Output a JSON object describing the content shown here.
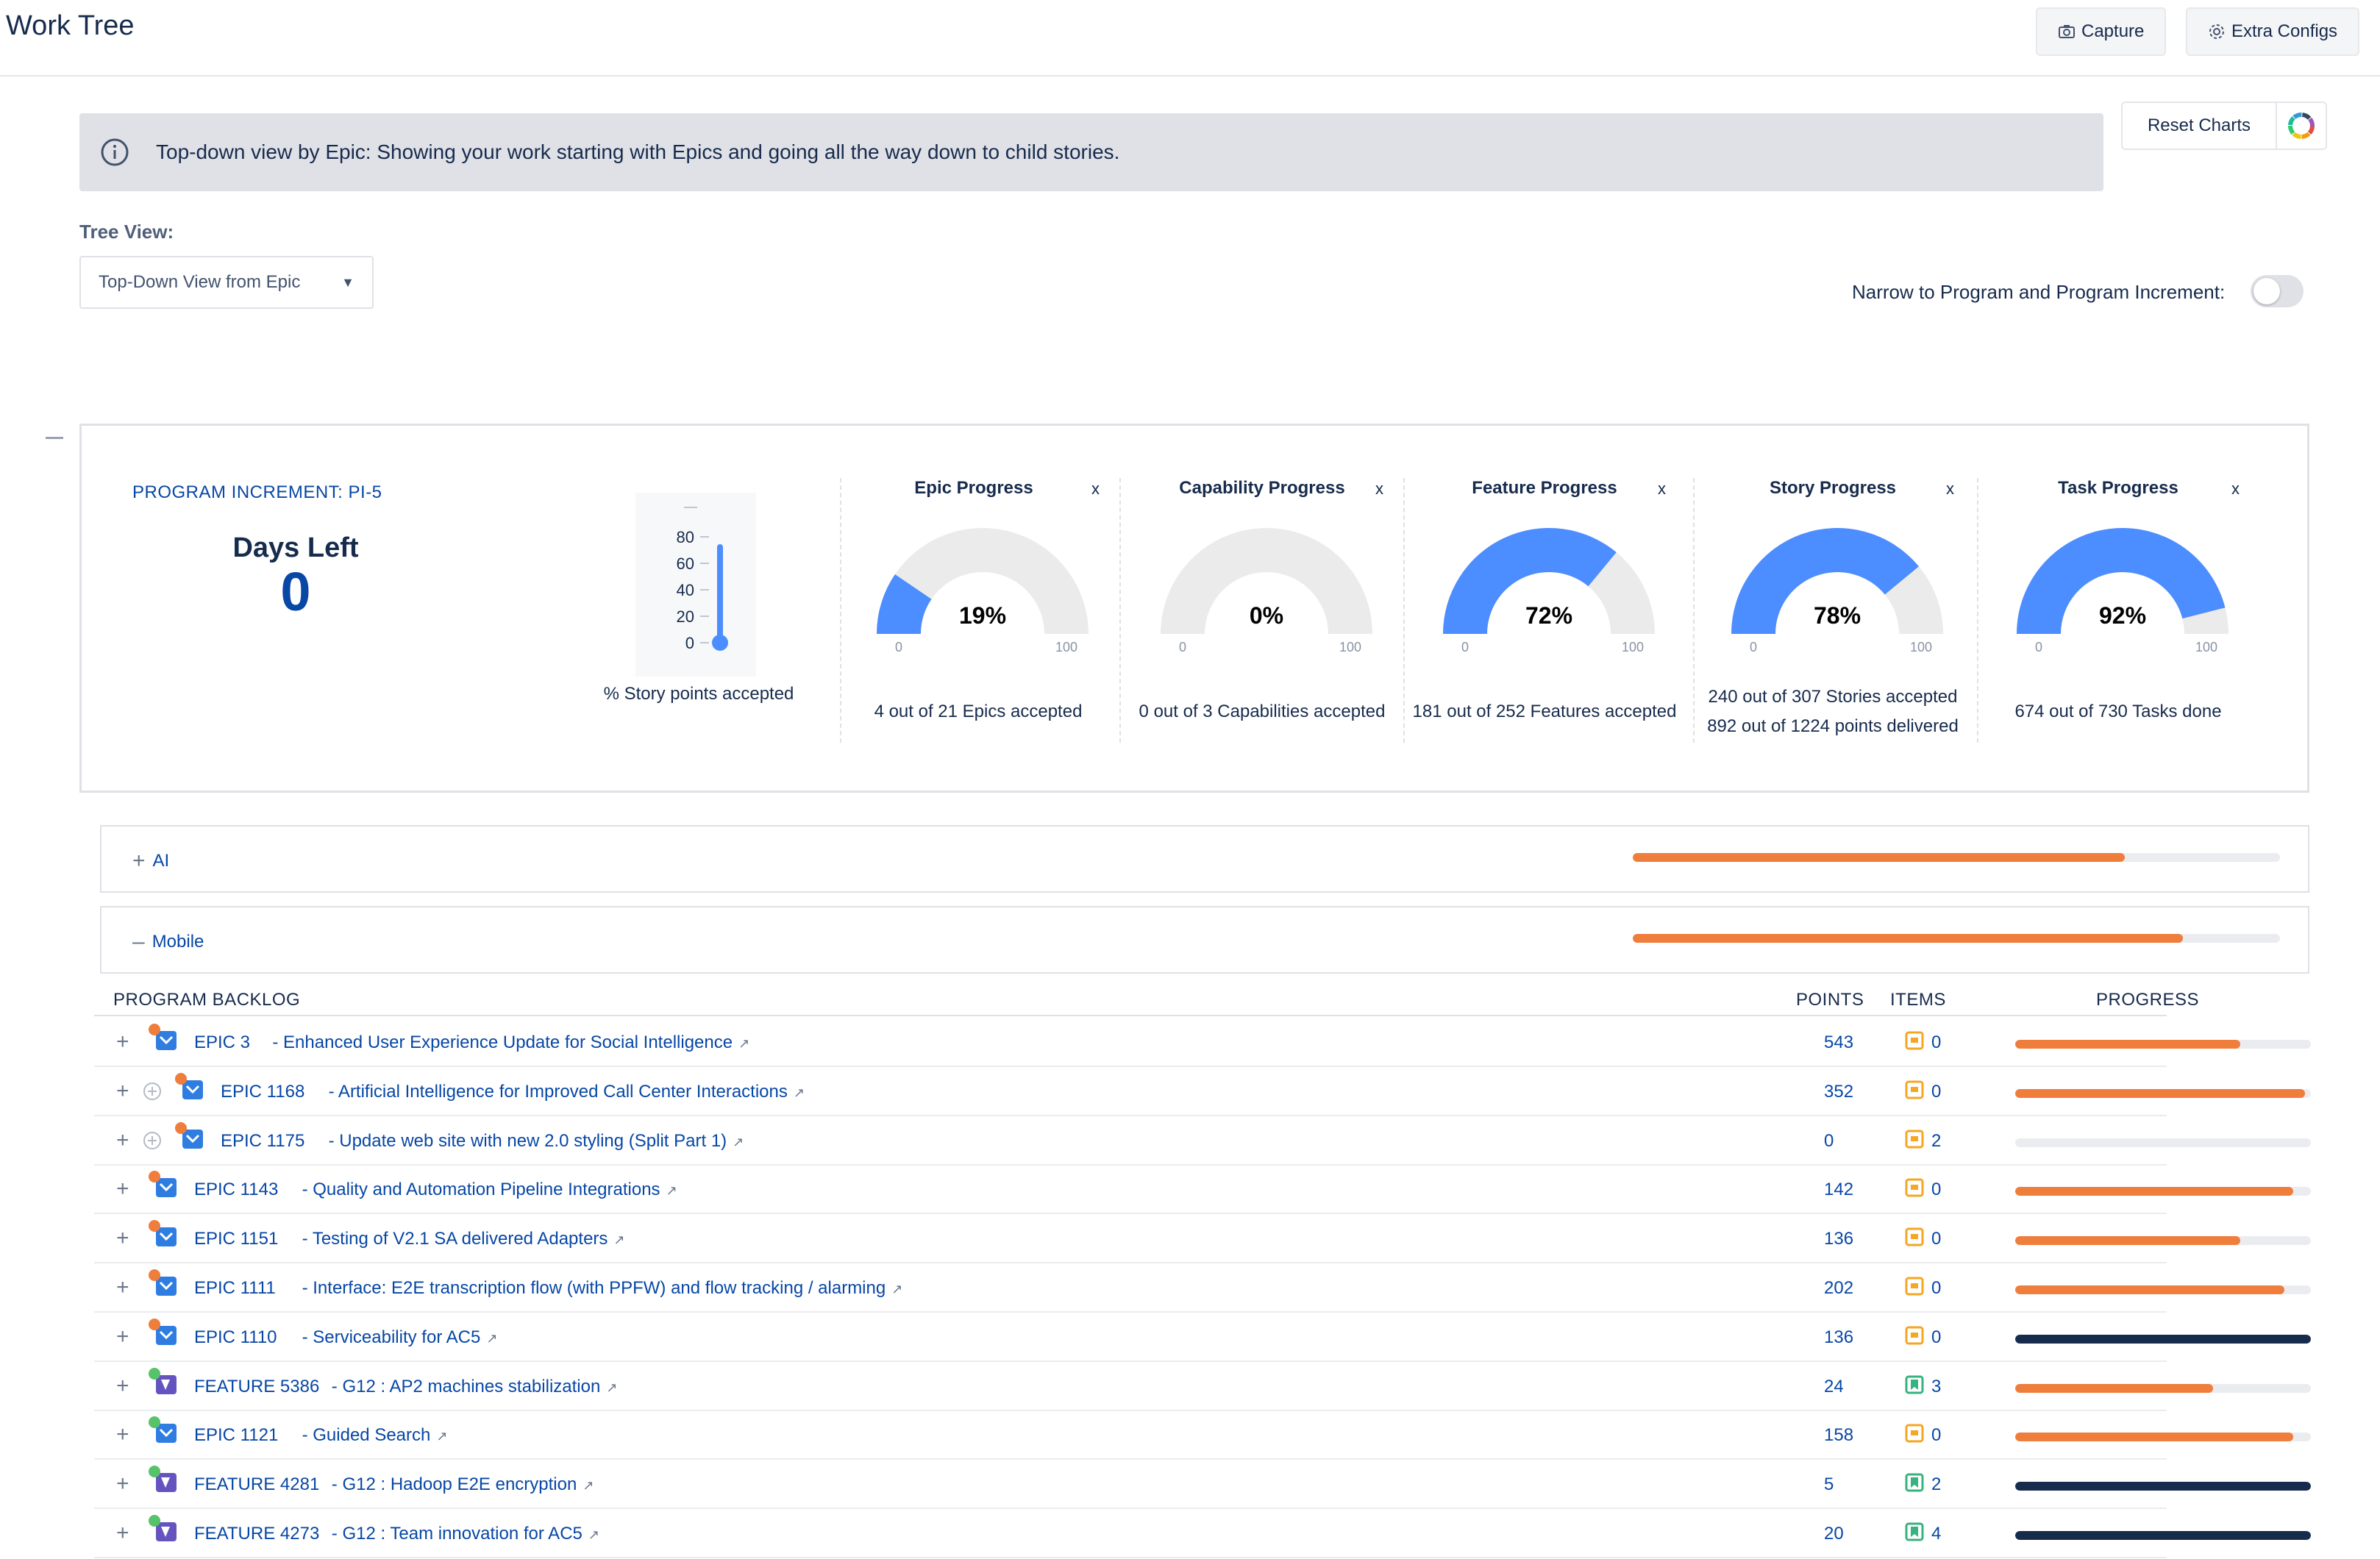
{
  "header": {
    "title": "Work Tree",
    "capture_label": "Capture",
    "extra_configs_label": "Extra Configs"
  },
  "banner": {
    "text": "Top-down view by Epic: Showing your work starting with Epics and going all the way down to child stories."
  },
  "reset_charts_label": "Reset Charts",
  "tree_view": {
    "label": "Tree View:",
    "selected": "Top-Down View from Epic"
  },
  "narrow": {
    "label": "Narrow to Program and Program Increment:",
    "enabled": false
  },
  "pi": {
    "label": "PROGRAM INCREMENT: PI-5",
    "days_left_label": "Days Left",
    "days_left_value": "0"
  },
  "thermometer": {
    "ticks": [
      "80",
      "60",
      "40",
      "20",
      "0"
    ],
    "caption": "% Story points accepted"
  },
  "gauges": [
    {
      "title": "Epic Progress",
      "percent": 19,
      "label": "19%",
      "min": "0",
      "max": "100",
      "caption1": "4 out of 21 Epics accepted",
      "caption2": ""
    },
    {
      "title": "Capability Progress",
      "percent": 0,
      "label": "0%",
      "min": "0",
      "max": "100",
      "caption1": "0 out of 3 Capabilities accepted",
      "caption2": ""
    },
    {
      "title": "Feature Progress",
      "percent": 72,
      "label": "72%",
      "min": "0",
      "max": "100",
      "caption1": "181 out of 252 Features accepted",
      "caption2": ""
    },
    {
      "title": "Story Progress",
      "percent": 78,
      "label": "78%",
      "min": "0",
      "max": "100",
      "caption1": "240 out of 307 Stories accepted",
      "caption2": "892 out of 1224 points delivered"
    },
    {
      "title": "Task Progress",
      "percent": 92,
      "label": "92%",
      "min": "0",
      "max": "100",
      "caption1": "674 out of 730 Tasks done",
      "caption2": ""
    }
  ],
  "gauge_close": "x",
  "groups": [
    {
      "name": "AI",
      "expanded": false,
      "progress": 0.76
    },
    {
      "name": "Mobile",
      "expanded": true,
      "progress": 0.85
    }
  ],
  "table": {
    "col_backlog": "PROGRAM BACKLOG",
    "col_points": "POINTS",
    "col_items": "ITEMS",
    "col_progress": "PROGRESS",
    "rows": [
      {
        "key": "EPIC 3",
        "summary": "- Enhanced User Experience Update for Social Intelligence",
        "type": "epic",
        "dot": "#ef7d3c",
        "indent": false,
        "points": "543",
        "items": "0",
        "progress": 0.76,
        "bar_color": "#ef7d3c"
      },
      {
        "key": "EPIC 1168",
        "summary": "- Artificial Intelligence for Improved Call Center Interactions",
        "type": "epic",
        "dot": "#ef7d3c",
        "indent": true,
        "points": "352",
        "items": "0",
        "progress": 0.98,
        "bar_color": "#ef7d3c"
      },
      {
        "key": "EPIC 1175",
        "summary": "- Update web site with new 2.0 styling (Split Part 1)",
        "type": "epic",
        "dot": "#ef7d3c",
        "indent": true,
        "points": "0",
        "items": "2",
        "progress": 0,
        "bar_color": "#ef7d3c"
      },
      {
        "key": "EPIC 1143",
        "summary": "- Quality and Automation Pipeline Integrations",
        "type": "epic",
        "dot": "#ef7d3c",
        "indent": false,
        "points": "142",
        "items": "0",
        "progress": 0.94,
        "bar_color": "#ef7d3c"
      },
      {
        "key": "EPIC 1151",
        "summary": "- Testing of V2.1 SA delivered Adapters",
        "type": "epic",
        "dot": "#ef7d3c",
        "indent": false,
        "points": "136",
        "items": "0",
        "progress": 0.76,
        "bar_color": "#ef7d3c"
      },
      {
        "key": "EPIC 1111",
        "summary": "- Interface: E2E transcription flow (with PPFW) and flow tracking / alarming",
        "type": "epic",
        "dot": "#ef7d3c",
        "indent": false,
        "points": "202",
        "items": "0",
        "progress": 0.91,
        "bar_color": "#ef7d3c"
      },
      {
        "key": "EPIC 1110",
        "summary": "- Serviceability for AC5",
        "type": "epic",
        "dot": "#ef7d3c",
        "indent": false,
        "points": "136",
        "items": "0",
        "progress": 1.0,
        "bar_color": "#172b4d"
      },
      {
        "key": "FEATURE 5386",
        "summary": "- G12 : AP2 machines stabilization",
        "type": "feature",
        "dot": "#57c26a",
        "indent": false,
        "points": "24",
        "items": "3",
        "progress": 0.67,
        "bar_color": "#ef7d3c"
      },
      {
        "key": "EPIC 1121",
        "summary": "- Guided Search",
        "type": "epic",
        "dot": "#57c26a",
        "indent": false,
        "points": "158",
        "items": "0",
        "progress": 0.94,
        "bar_color": "#ef7d3c"
      },
      {
        "key": "FEATURE 4281",
        "summary": "- G12 : Hadoop E2E encryption",
        "type": "feature",
        "dot": "#57c26a",
        "indent": false,
        "points": "5",
        "items": "2",
        "progress": 1.0,
        "bar_color": "#172b4d"
      },
      {
        "key": "FEATURE 4273",
        "summary": "- G12 : Team innovation for AC5",
        "type": "feature",
        "dot": "#57c26a",
        "indent": false,
        "points": "20",
        "items": "4",
        "progress": 1.0,
        "bar_color": "#172b4d"
      }
    ]
  },
  "colors": {
    "accent": "#4c8dff",
    "link": "#0747a6",
    "progress_orange": "#ef7d3c",
    "progress_done": "#172b4d",
    "epic_icon": "#2f7de1",
    "feature_icon": "#6554c0",
    "items_epic": "#f5a623",
    "items_feature": "#36b37e"
  }
}
